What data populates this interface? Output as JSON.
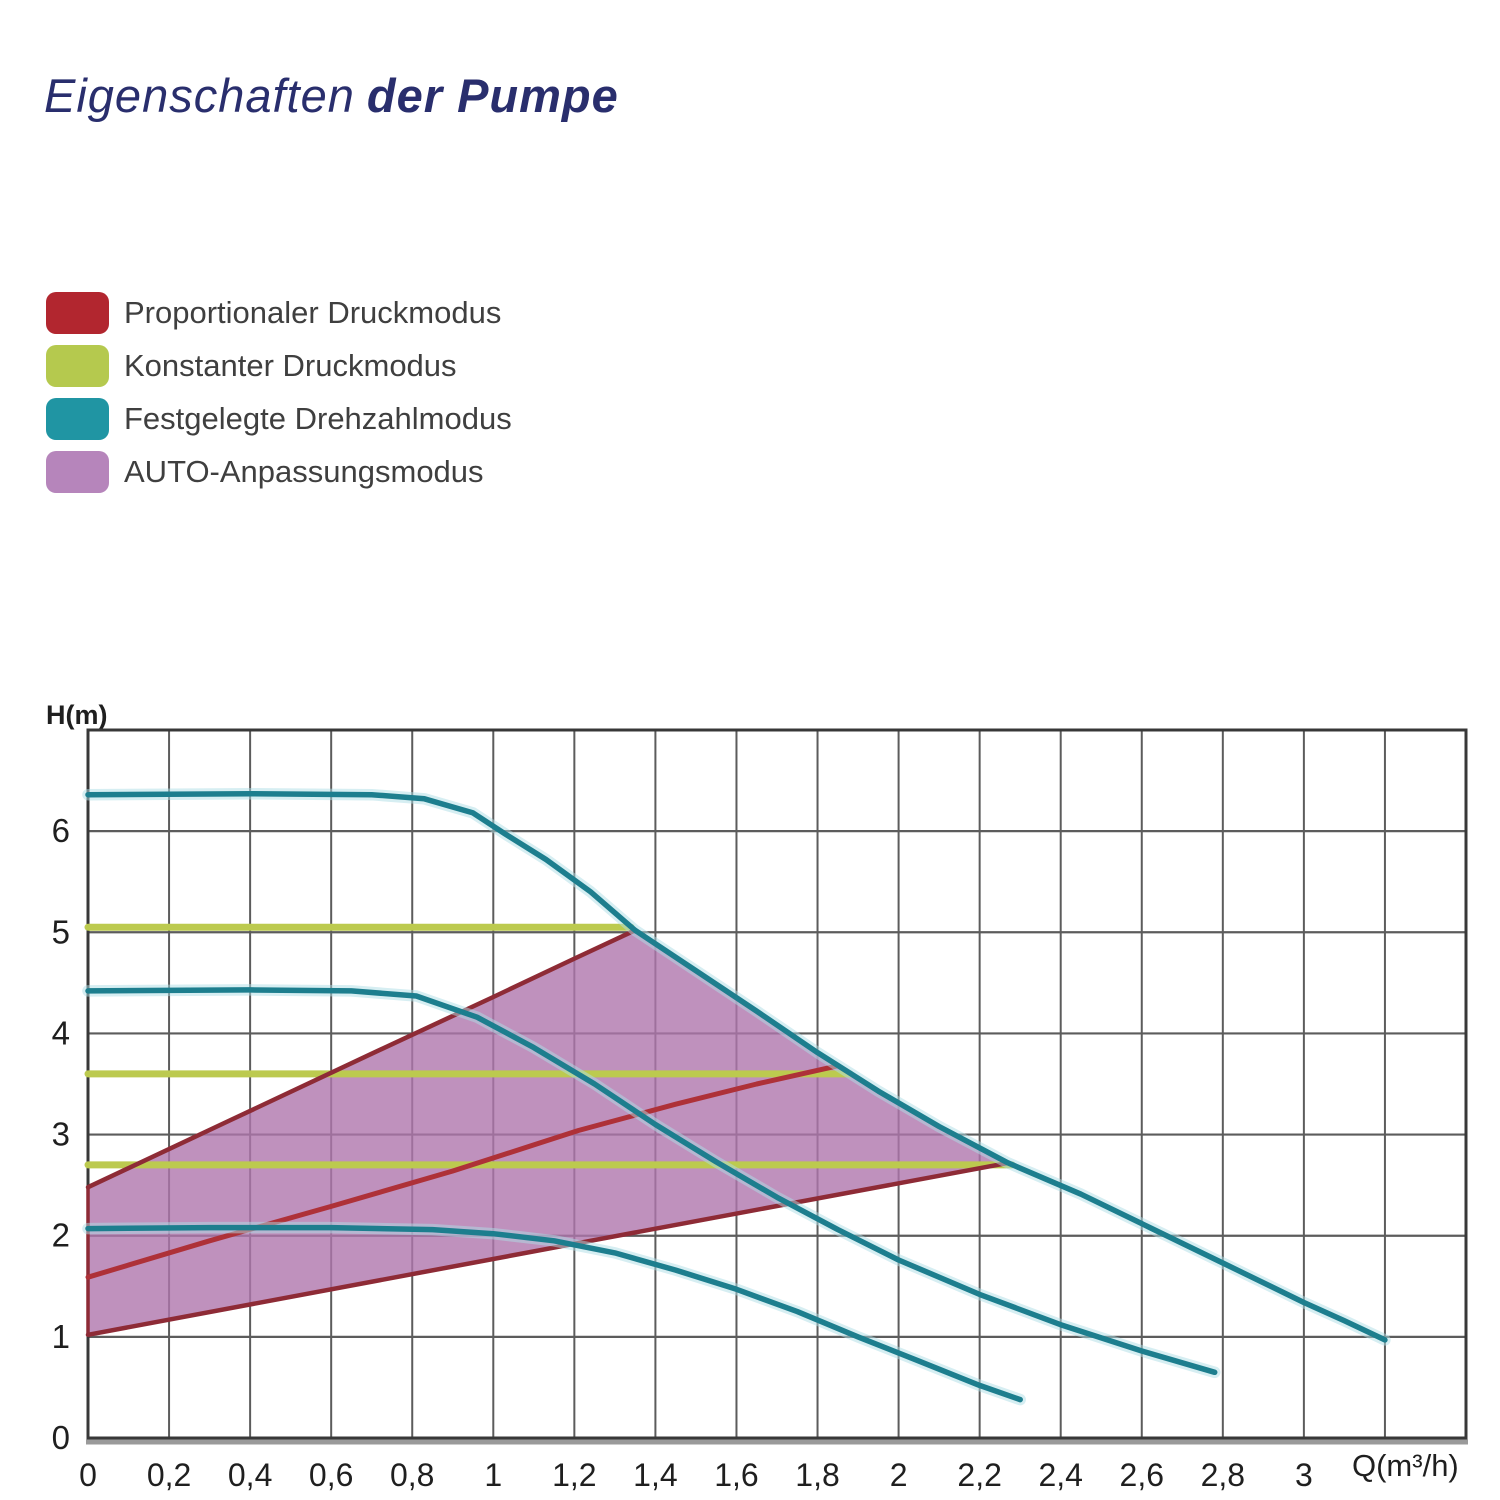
{
  "title": {
    "regular": "Eigenschaften",
    "bold": "der Pumpe"
  },
  "legend": {
    "items": [
      {
        "id": "proportional-pressure-mode",
        "label": "Proportionaler Druckmodus",
        "color": "#b2262f"
      },
      {
        "id": "constant-pressure-mode",
        "label": "Konstanter Druckmodus",
        "color": "#b5c94e"
      },
      {
        "id": "fixed-speed-mode",
        "label": "Festgelegte Drehzahlmodus",
        "color": "#2095a3"
      },
      {
        "id": "auto-adapt-mode",
        "label": "AUTO-Anpassungsmodus",
        "color": "#b685bb"
      }
    ]
  },
  "colors": {
    "title": "#292e6d",
    "text": "#3f3f3f",
    "tick": "#1f1f1f",
    "grid": "#5c5c5c",
    "border": "#383838",
    "border_shadow": "#9a9a9a",
    "teal": "#1d7e8e",
    "teal_halo": "#aedde6",
    "green": "#bcca4f",
    "red": "#ae3138",
    "red_dark": "#8e2b36",
    "purple": "#af76ad"
  },
  "chart_data": {
    "type": "line",
    "title": "Eigenschaften der Pumpe",
    "xlabel": "Q(m³/h)",
    "ylabel": "H(m)",
    "xlim": [
      0,
      3.4
    ],
    "ylim": [
      0,
      7
    ],
    "grid": {
      "on": true,
      "x_step": 0.2,
      "y_step": 1
    },
    "legend_position": "outside-top-left",
    "x_ticks": [
      {
        "v": 0,
        "label": "0"
      },
      {
        "v": 0.2,
        "label": "0,2"
      },
      {
        "v": 0.4,
        "label": "0,4"
      },
      {
        "v": 0.6,
        "label": "0,6"
      },
      {
        "v": 0.8,
        "label": "0,8"
      },
      {
        "v": 1,
        "label": "1"
      },
      {
        "v": 1.2,
        "label": "1,2"
      },
      {
        "v": 1.4,
        "label": "1,4"
      },
      {
        "v": 1.6,
        "label": "1,6"
      },
      {
        "v": 1.8,
        "label": "1,8"
      },
      {
        "v": 2,
        "label": "2"
      },
      {
        "v": 2.2,
        "label": "2,2"
      },
      {
        "v": 2.4,
        "label": "2,4"
      },
      {
        "v": 2.6,
        "label": "2,6"
      },
      {
        "v": 2.8,
        "label": "2,8"
      },
      {
        "v": 3,
        "label": "3"
      }
    ],
    "y_ticks": [
      {
        "v": 0,
        "label": "0"
      },
      {
        "v": 1,
        "label": "1"
      },
      {
        "v": 2,
        "label": "2"
      },
      {
        "v": 3,
        "label": "3"
      },
      {
        "v": 4,
        "label": "4"
      },
      {
        "v": 5,
        "label": "5"
      },
      {
        "v": 6,
        "label": "6"
      }
    ],
    "series": [
      {
        "id": "fixed-speed-III",
        "mode": "Festgelegte Drehzahlmodus",
        "color_key": "teal",
        "halo": true,
        "width": 5.5,
        "points": [
          [
            0,
            6.36
          ],
          [
            0.4,
            6.37
          ],
          [
            0.7,
            6.36
          ],
          [
            0.83,
            6.32
          ],
          [
            0.95,
            6.18
          ],
          [
            1.03,
            5.97
          ],
          [
            1.13,
            5.72
          ],
          [
            1.24,
            5.4
          ],
          [
            1.35,
            5.02
          ],
          [
            1.5,
            4.62
          ],
          [
            1.65,
            4.22
          ],
          [
            1.8,
            3.81
          ],
          [
            1.95,
            3.43
          ],
          [
            2.1,
            3.08
          ],
          [
            2.27,
            2.72
          ],
          [
            2.45,
            2.41
          ],
          [
            2.62,
            2.08
          ],
          [
            2.8,
            1.73
          ],
          [
            3.0,
            1.34
          ],
          [
            3.1,
            1.16
          ],
          [
            3.2,
            0.97
          ]
        ]
      },
      {
        "id": "fixed-speed-II",
        "mode": "Festgelegte Drehzahlmodus",
        "color_key": "teal",
        "halo": true,
        "width": 5.5,
        "points": [
          [
            0,
            4.42
          ],
          [
            0.4,
            4.43
          ],
          [
            0.65,
            4.42
          ],
          [
            0.81,
            4.37
          ],
          [
            0.96,
            4.16
          ],
          [
            1.1,
            3.86
          ],
          [
            1.25,
            3.5
          ],
          [
            1.4,
            3.1
          ],
          [
            1.55,
            2.73
          ],
          [
            1.7,
            2.38
          ],
          [
            1.85,
            2.06
          ],
          [
            2.0,
            1.76
          ],
          [
            2.2,
            1.42
          ],
          [
            2.4,
            1.12
          ],
          [
            2.6,
            0.86
          ],
          [
            2.78,
            0.65
          ]
        ]
      },
      {
        "id": "fixed-speed-I",
        "mode": "Festgelegte Drehzahlmodus",
        "color_key": "teal",
        "halo": true,
        "width": 5.5,
        "points": [
          [
            0,
            2.07
          ],
          [
            0.3,
            2.08
          ],
          [
            0.6,
            2.08
          ],
          [
            0.85,
            2.06
          ],
          [
            1.0,
            2.02
          ],
          [
            1.15,
            1.95
          ],
          [
            1.3,
            1.83
          ],
          [
            1.45,
            1.66
          ],
          [
            1.6,
            1.47
          ],
          [
            1.75,
            1.25
          ],
          [
            1.9,
            1.0
          ],
          [
            2.05,
            0.76
          ],
          [
            2.2,
            0.52
          ],
          [
            2.3,
            0.38
          ]
        ]
      },
      {
        "id": "constant-pressure-high",
        "mode": "Konstanter Druckmodus",
        "color_key": "green",
        "halo": false,
        "width": 7,
        "points": [
          [
            0,
            5.05
          ],
          [
            1.34,
            5.05
          ]
        ]
      },
      {
        "id": "constant-pressure-mid",
        "mode": "Konstanter Druckmodus",
        "color_key": "green",
        "halo": false,
        "width": 7,
        "points": [
          [
            0,
            3.6
          ],
          [
            1.88,
            3.6
          ]
        ]
      },
      {
        "id": "constant-pressure-low",
        "mode": "Konstanter Druckmodus",
        "color_key": "green",
        "halo": false,
        "width": 7,
        "points": [
          [
            0,
            2.7
          ],
          [
            2.28,
            2.7
          ]
        ]
      },
      {
        "id": "proportional-pressure-max",
        "mode": "Proportionaler Druckmodus",
        "color_key": "red_dark",
        "halo": false,
        "width": 4.5,
        "points": [
          [
            0,
            2.48
          ],
          [
            0.35,
            3.14
          ],
          [
            0.7,
            3.8
          ],
          [
            1.0,
            4.36
          ],
          [
            1.2,
            4.74
          ],
          [
            1.35,
            5.02
          ]
        ]
      },
      {
        "id": "proportional-pressure-mid",
        "mode": "Proportionaler Druckmodus",
        "color_key": "red",
        "halo": false,
        "width": 5,
        "points": [
          [
            0,
            1.59
          ],
          [
            0.3,
            1.95
          ],
          [
            0.6,
            2.29
          ],
          [
            0.9,
            2.64
          ],
          [
            1.21,
            3.04
          ],
          [
            1.45,
            3.3
          ],
          [
            1.65,
            3.5
          ],
          [
            1.85,
            3.68
          ]
        ]
      },
      {
        "id": "proportional-pressure-min",
        "mode": "Proportionaler Druckmodus",
        "color_key": "red_dark",
        "halo": false,
        "width": 4.5,
        "points": [
          [
            0,
            1.02
          ],
          [
            1.2,
            1.92
          ],
          [
            2.27,
            2.72
          ]
        ]
      }
    ],
    "auto_region": {
      "id": "auto-adapt-region",
      "mode": "AUTO-Anpassungsmodus",
      "fill_key": "purple",
      "opacity": 0.8,
      "points": [
        [
          0,
          1.02
        ],
        [
          0,
          2.48
        ],
        [
          0.35,
          3.14
        ],
        [
          0.7,
          3.8
        ],
        [
          1.0,
          4.36
        ],
        [
          1.2,
          4.74
        ],
        [
          1.35,
          5.02
        ],
        [
          1.5,
          4.62
        ],
        [
          1.65,
          4.22
        ],
        [
          1.8,
          3.81
        ],
        [
          1.95,
          3.43
        ],
        [
          2.1,
          3.08
        ],
        [
          2.27,
          2.72
        ]
      ]
    }
  }
}
